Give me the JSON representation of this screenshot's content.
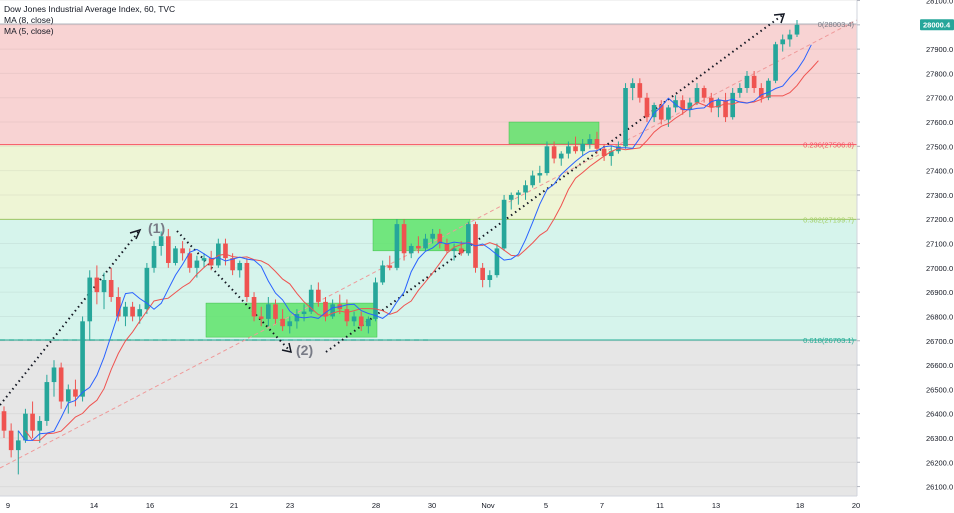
{
  "legend": {
    "title": "Dow Jones Industrial Average Index, 60, TVC",
    "ma8": "MA (8, close)",
    "ma5": "MA (5, close)"
  },
  "price_badge": "28000.4",
  "colors": {
    "up": "#26a69a",
    "down": "#ef5350",
    "ma8": "#ef5350",
    "ma5": "#2962ff",
    "fib_0": "#f8d3d3",
    "fib_236": "#eef5d5",
    "fib_382": "#d6f4ec",
    "fib_618": "#e6e6e6",
    "fib_line_0": "#b2b5be",
    "fib_line_236": "#f7525f",
    "fib_line_382": "#a5d06a",
    "fib_line_618": "#22ab94",
    "zone": "#5fe36b",
    "badge": "#26a69a"
  },
  "waves": {
    "w1": "(1)",
    "w2": "(2)"
  },
  "chart_data": {
    "type": "candlestick",
    "y_ticks": [
      "28100.0",
      "28000.0",
      "27900.0",
      "27800.0",
      "27700.0",
      "27600.0",
      "27500.0",
      "27400.0",
      "27300.0",
      "27200.0",
      "27100.0",
      "27000.0",
      "26900.0",
      "26800.0",
      "26700.0",
      "26600.0",
      "26500.0",
      "26400.0",
      "26300.0",
      "26200.0",
      "26100.0"
    ],
    "y_values": [
      28100,
      28000,
      27900,
      27800,
      27700,
      27600,
      27500,
      27400,
      27300,
      27200,
      27100,
      27000,
      26900,
      26800,
      26700,
      26600,
      26500,
      26400,
      26300,
      26200,
      26100
    ],
    "ylim": [
      26060,
      28140
    ],
    "x_ticks": [
      "9",
      "14",
      "16",
      "21",
      "23",
      "28",
      "30",
      "Nov",
      "5",
      "7",
      "11",
      "13",
      "18",
      "20"
    ],
    "fib_levels": [
      {
        "label": "0(28003.4)",
        "value": 28003.4
      },
      {
        "label": "0.236(27506.8)",
        "value": 27506.8
      },
      {
        "label": "0.382(27199.7)",
        "value": 27199.7
      },
      {
        "label": "0.618(26703.1)",
        "value": 26703.1
      }
    ],
    "candles": [
      [
        26410,
        26430,
        26300,
        26330
      ],
      [
        26330,
        26360,
        26220,
        26250
      ],
      [
        26250,
        26330,
        26150,
        26290
      ],
      [
        26290,
        26420,
        26280,
        26400
      ],
      [
        26400,
        26450,
        26300,
        26330
      ],
      [
        26330,
        26390,
        26280,
        26370
      ],
      [
        26370,
        26560,
        26350,
        26530
      ],
      [
        26530,
        26620,
        26470,
        26590
      ],
      [
        26590,
        26610,
        26420,
        26450
      ],
      [
        26450,
        26520,
        26400,
        26500
      ],
      [
        26500,
        26540,
        26430,
        26470
      ],
      [
        26470,
        26800,
        26450,
        26780
      ],
      [
        26780,
        26990,
        26700,
        26960
      ],
      [
        26960,
        27010,
        26850,
        26900
      ],
      [
        26900,
        26980,
        26830,
        26950
      ],
      [
        26950,
        27000,
        26860,
        26880
      ],
      [
        26880,
        26920,
        26780,
        26800
      ],
      [
        26800,
        26860,
        26760,
        26840
      ],
      [
        26840,
        26860,
        26780,
        26800
      ],
      [
        26800,
        26850,
        26770,
        26830
      ],
      [
        26830,
        27020,
        26810,
        27000
      ],
      [
        27000,
        27110,
        26980,
        27090
      ],
      [
        27090,
        27150,
        27050,
        27130
      ],
      [
        27130,
        27160,
        27000,
        27020
      ],
      [
        27020,
        27090,
        27010,
        27080
      ],
      [
        27080,
        27110,
        27030,
        27060
      ],
      [
        27060,
        27080,
        26980,
        27000
      ],
      [
        27000,
        27050,
        26960,
        27030
      ],
      [
        27030,
        27060,
        27000,
        27040
      ],
      [
        27040,
        27070,
        26990,
        27010
      ],
      [
        27010,
        27120,
        27000,
        27100
      ],
      [
        27100,
        27120,
        27010,
        27040
      ],
      [
        27040,
        27060,
        26970,
        26990
      ],
      [
        26990,
        27030,
        26960,
        27020
      ],
      [
        27020,
        27040,
        26860,
        26880
      ],
      [
        26880,
        26900,
        26780,
        26800
      ],
      [
        26800,
        26840,
        26760,
        26790
      ],
      [
        26790,
        26880,
        26760,
        26850
      ],
      [
        26850,
        26870,
        26770,
        26790
      ],
      [
        26790,
        26830,
        26740,
        26760
      ],
      [
        26760,
        26800,
        26730,
        26780
      ],
      [
        26780,
        26830,
        26750,
        26810
      ],
      [
        26810,
        26850,
        26780,
        26820
      ],
      [
        26820,
        26930,
        26810,
        26910
      ],
      [
        26910,
        26940,
        26840,
        26860
      ],
      [
        26860,
        26880,
        26780,
        26800
      ],
      [
        26800,
        26870,
        26790,
        26850
      ],
      [
        26850,
        26890,
        26810,
        26830
      ],
      [
        26830,
        26870,
        26760,
        26780
      ],
      [
        26780,
        26820,
        26760,
        26800
      ],
      [
        26800,
        26820,
        26740,
        26760
      ],
      [
        26760,
        26800,
        26730,
        26790
      ],
      [
        26790,
        26960,
        26780,
        26940
      ],
      [
        26940,
        27030,
        26930,
        27010
      ],
      [
        27010,
        27050,
        26990,
        27000
      ],
      [
        27000,
        27200,
        26990,
        27180
      ],
      [
        27180,
        27200,
        27030,
        27060
      ],
      [
        27060,
        27100,
        27040,
        27090
      ],
      [
        27090,
        27130,
        27060,
        27080
      ],
      [
        27080,
        27140,
        27070,
        27120
      ],
      [
        27120,
        27160,
        27100,
        27140
      ],
      [
        27140,
        27160,
        27080,
        27100
      ],
      [
        27100,
        27120,
        27060,
        27070
      ],
      [
        27070,
        27100,
        27030,
        27080
      ],
      [
        27080,
        27110,
        27050,
        27060
      ],
      [
        27060,
        27190,
        27050,
        27180
      ],
      [
        27180,
        27190,
        26980,
        27000
      ],
      [
        27000,
        27020,
        26920,
        26950
      ],
      [
        26950,
        26990,
        26920,
        26970
      ],
      [
        26970,
        27100,
        26960,
        27080
      ],
      [
        27080,
        27300,
        27070,
        27280
      ],
      [
        27280,
        27310,
        27240,
        27300
      ],
      [
        27300,
        27320,
        27260,
        27310
      ],
      [
        27310,
        27360,
        27280,
        27340
      ],
      [
        27340,
        27400,
        27330,
        27380
      ],
      [
        27380,
        27420,
        27350,
        27390
      ],
      [
        27390,
        27520,
        27380,
        27500
      ],
      [
        27500,
        27520,
        27430,
        27450
      ],
      [
        27450,
        27480,
        27420,
        27470
      ],
      [
        27470,
        27520,
        27450,
        27500
      ],
      [
        27500,
        27540,
        27470,
        27480
      ],
      [
        27480,
        27530,
        27460,
        27510
      ],
      [
        27510,
        27550,
        27490,
        27530
      ],
      [
        27530,
        27560,
        27470,
        27490
      ],
      [
        27490,
        27510,
        27440,
        27460
      ],
      [
        27460,
        27500,
        27420,
        27480
      ],
      [
        27480,
        27520,
        27470,
        27500
      ],
      [
        27500,
        27760,
        27490,
        27740
      ],
      [
        27740,
        27780,
        27690,
        27760
      ],
      [
        27760,
        27780,
        27680,
        27700
      ],
      [
        27700,
        27720,
        27600,
        27620
      ],
      [
        27620,
        27680,
        27600,
        27670
      ],
      [
        27670,
        27690,
        27590,
        27610
      ],
      [
        27610,
        27670,
        27580,
        27660
      ],
      [
        27660,
        27710,
        27640,
        27690
      ],
      [
        27690,
        27710,
        27630,
        27650
      ],
      [
        27650,
        27700,
        27620,
        27680
      ],
      [
        27680,
        27760,
        27670,
        27740
      ],
      [
        27740,
        27750,
        27680,
        27700
      ],
      [
        27700,
        27720,
        27640,
        27660
      ],
      [
        27660,
        27700,
        27620,
        27690
      ],
      [
        27690,
        27720,
        27600,
        27620
      ],
      [
        27620,
        27740,
        27610,
        27720
      ],
      [
        27720,
        27760,
        27700,
        27740
      ],
      [
        27740,
        27810,
        27720,
        27790
      ],
      [
        27790,
        27810,
        27720,
        27740
      ],
      [
        27740,
        27760,
        27680,
        27700
      ],
      [
        27700,
        27780,
        27690,
        27770
      ],
      [
        27770,
        27930,
        27760,
        27920
      ],
      [
        27920,
        27960,
        27890,
        27940
      ],
      [
        27940,
        27980,
        27910,
        27960
      ],
      [
        27960,
        28020,
        27950,
        28000
      ]
    ]
  }
}
